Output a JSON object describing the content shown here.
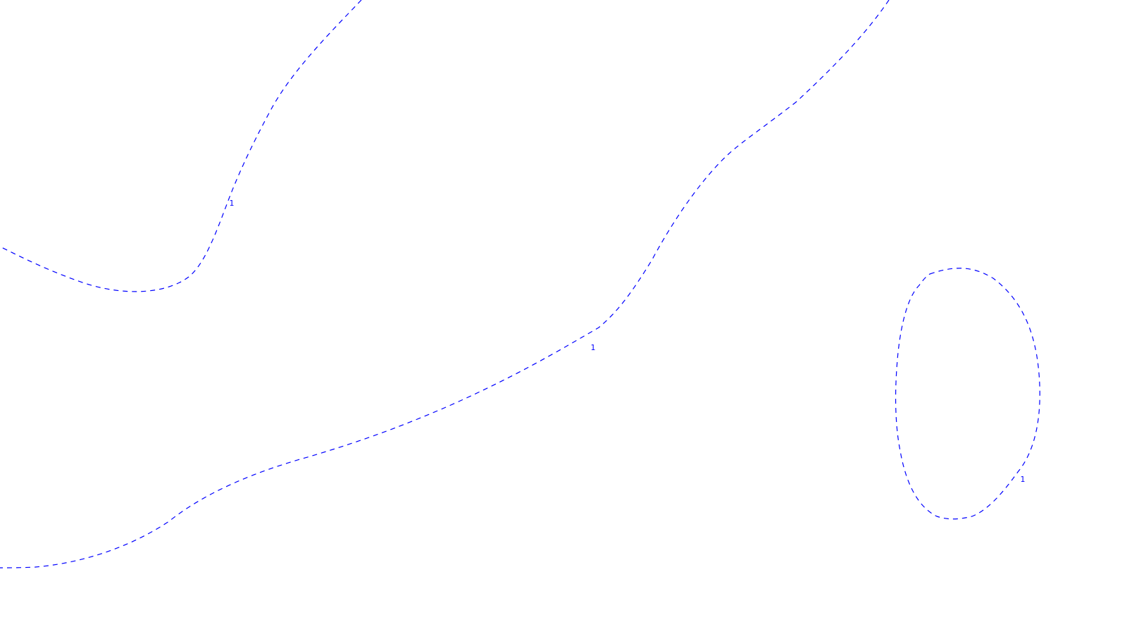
{
  "map": {
    "contour_color": "#0000ff",
    "background_color": "#ffffff",
    "contour_level": "1",
    "contours": [
      {
        "name": "contour-upper-left",
        "label": "1"
      },
      {
        "name": "contour-middle",
        "label": "1"
      },
      {
        "name": "contour-closed-loop",
        "label": "1"
      }
    ]
  }
}
